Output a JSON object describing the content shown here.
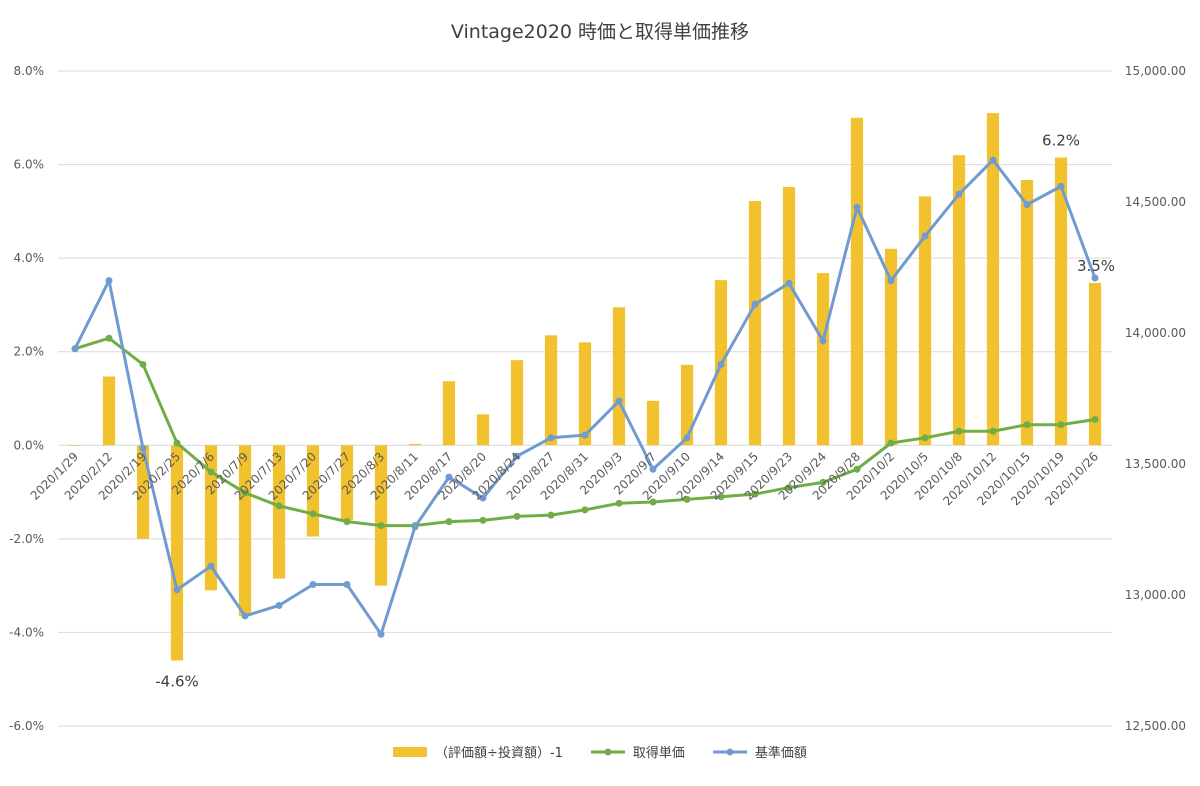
{
  "chart_data": {
    "type": "bar",
    "title": "Vintage2020 時価と取得単価推移",
    "categories": [
      "2020/1/29",
      "2020/2/12",
      "2020/2/19",
      "2020/2/25",
      "2020/7/6",
      "2020/7/9",
      "2020/7/13",
      "2020/7/20",
      "2020/7/27",
      "2020/8/3",
      "2020/8/11",
      "2020/8/17",
      "2020/8/20",
      "2020/8/24",
      "2020/8/27",
      "2020/8/31",
      "2020/9/3",
      "2020/9/7",
      "2020/9/10",
      "2020/9/14",
      "2020/9/15",
      "2020/9/23",
      "2020/9/24",
      "2020/9/28",
      "2020/10/2",
      "2020/10/5",
      "2020/10/8",
      "2020/10/12",
      "2020/10/15",
      "2020/10/19",
      "2020/10/26"
    ],
    "y_left": {
      "ticks": [
        "8.0%",
        "6.0%",
        "4.0%",
        "2.0%",
        "0.0%",
        "-2.0%",
        "-4.0%",
        "-6.0%"
      ],
      "ylim": [
        -6,
        8
      ]
    },
    "y_right": {
      "ticks": [
        "15,000.00",
        "14,500.00",
        "14,000.00",
        "13,500.00",
        "13,000.00",
        "12,500.00"
      ],
      "ylim": [
        12500,
        15000
      ]
    },
    "grid": true,
    "legend_position": "bottom",
    "series": [
      {
        "name": "（評価額÷投資額）-1",
        "kind": "bar",
        "axis": "left",
        "color": "#F2C12E",
        "values": [
          0.0,
          1.47,
          -2.0,
          -4.6,
          -3.1,
          -3.65,
          -2.85,
          -1.95,
          -1.6,
          -3.0,
          0.03,
          1.37,
          0.66,
          1.82,
          2.35,
          2.2,
          2.95,
          0.95,
          1.72,
          3.53,
          5.22,
          5.52,
          3.68,
          7.0,
          4.2,
          5.32,
          6.2,
          7.1,
          5.67,
          6.15,
          3.47
        ]
      },
      {
        "name": "取得単価",
        "kind": "line",
        "axis": "right",
        "color": "#70AD47",
        "values": [
          13940,
          13980,
          13880,
          13580,
          13470,
          13390,
          13340,
          13310,
          13280,
          13265,
          13265,
          13280,
          13285,
          13300,
          13305,
          13325,
          13350,
          13355,
          13365,
          13375,
          13385,
          13410,
          13430,
          13480,
          13580,
          13600,
          13625,
          13625,
          13650,
          13650,
          13670
        ]
      },
      {
        "name": "基準価額",
        "kind": "line",
        "axis": "right",
        "color": "#6F9BD1",
        "values": [
          13940,
          14200,
          13560,
          13020,
          13110,
          12920,
          12960,
          13040,
          13040,
          12850,
          13260,
          13450,
          13370,
          13530,
          13600,
          13610,
          13740,
          13480,
          13600,
          13880,
          14110,
          14190,
          13970,
          14480,
          14200,
          14370,
          14530,
          14660,
          14490,
          14560,
          14210
        ]
      }
    ],
    "annotations": [
      {
        "text": "-4.6%",
        "category": "2020/2/25",
        "value": -4.6
      },
      {
        "text": "6.2%",
        "category": "2020/10/19",
        "value": 6.15
      },
      {
        "text": "3.5%",
        "category": "2020/10/26",
        "value": 3.47
      }
    ]
  }
}
